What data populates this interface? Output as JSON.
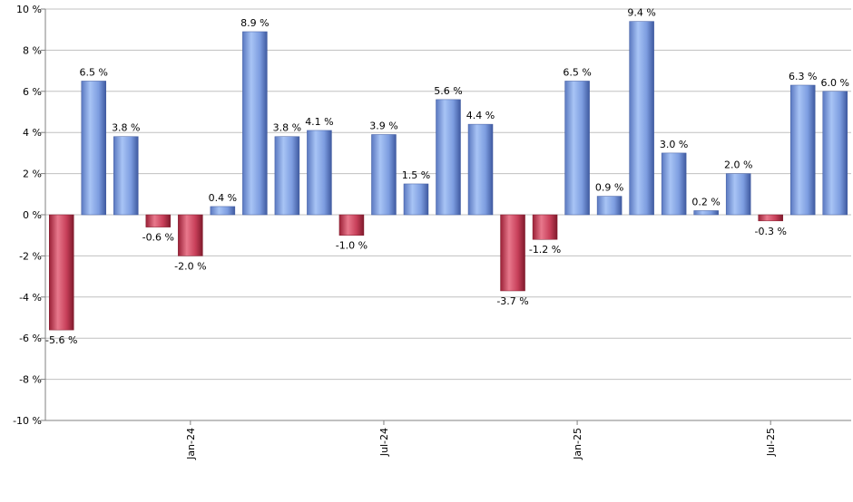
{
  "chart_data": {
    "type": "bar",
    "title": "",
    "xlabel": "",
    "ylabel": "",
    "ylim": [
      -10,
      10
    ],
    "yticks": [
      -10,
      -8,
      -6,
      -4,
      -2,
      0,
      2,
      4,
      6,
      8,
      10
    ],
    "y_tick_suffix": " %",
    "grid": true,
    "legend": "none",
    "colors": {
      "positive": "#7f9fe0",
      "negative": "#c8405a",
      "grid": "#c0c0c0",
      "axis": "#808080"
    },
    "values": [
      -5.6,
      6.5,
      3.8,
      -0.6,
      -2.0,
      0.4,
      8.9,
      3.8,
      4.1,
      -1.0,
      3.9,
      1.5,
      5.6,
      4.4,
      -3.7,
      -1.2,
      6.5,
      0.9,
      9.4,
      3.0,
      0.2,
      2.0,
      -0.3,
      6.3,
      6.0
    ],
    "data_labels": [
      "-5.6 %",
      "6.5 %",
      "3.8 %",
      "-0.6 %",
      "-2.0 %",
      "0.4 %",
      "8.9 %",
      "3.8 %",
      "4.1 %",
      "-1.0 %",
      "3.9 %",
      "1.5 %",
      "5.6 %",
      "4.4 %",
      "-3.7 %",
      "-1.2 %",
      "6.5 %",
      "0.9 %",
      "9.4 %",
      "3.0 %",
      "0.2 %",
      "2.0 %",
      "-0.3 %",
      "6.3 %",
      "6.0 %"
    ],
    "x_tick_labels": [
      {
        "label": "Jan-24",
        "position": 4.5
      },
      {
        "label": "Jul-24",
        "position": 10.5
      },
      {
        "label": "Jan-25",
        "position": 16.5
      },
      {
        "label": "Jul-25",
        "position": 22.5
      }
    ]
  }
}
